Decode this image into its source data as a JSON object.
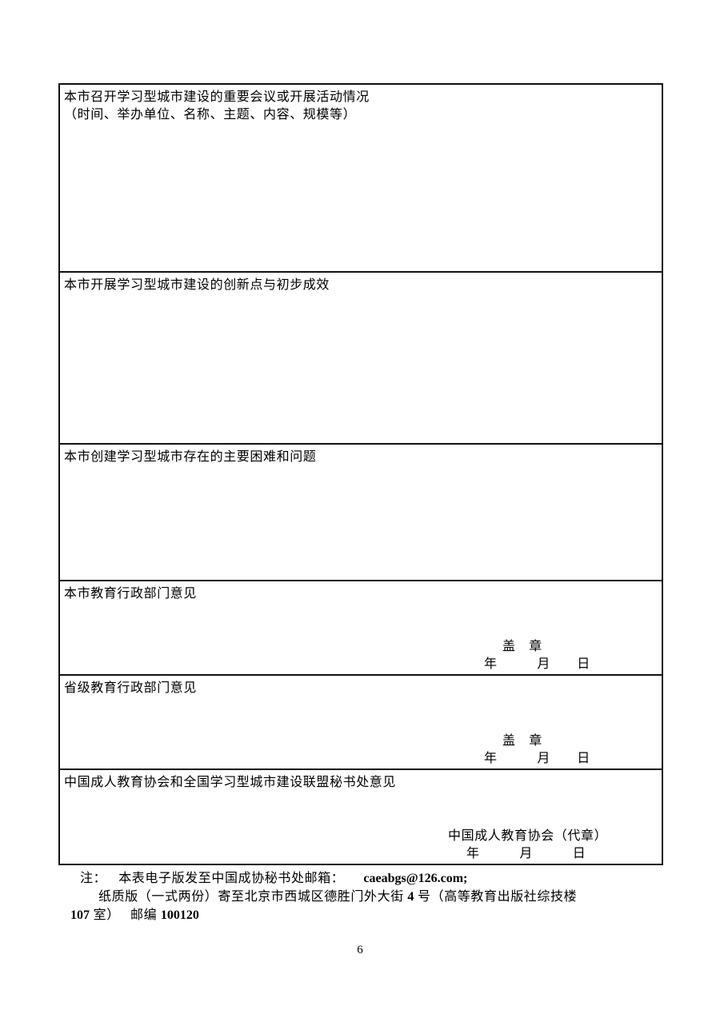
{
  "document": {
    "page_number": "6"
  },
  "table": {
    "rows": [
      {
        "label_line1": "本市召开学习型城市建设的重要会议或开展活动情况",
        "label_line2": "（时间、举办单位、名称、主题、内容、规模等）"
      },
      {
        "label_line1": "本市开展学习型城市建设的创新点与初步成效"
      },
      {
        "label_line1": "本市创建学习型城市存在的主要困难和问题"
      },
      {
        "label_line1": "本市教育行政部门意见",
        "seal_line": "盖　章",
        "date_line": "年　　　月　　日"
      },
      {
        "label_line1": "省级教育行政部门意见",
        "seal_line": "盖　章",
        "date_line": "年　　　月　　日"
      },
      {
        "label_line1": "中国成人教育协会和全国学习型城市建设联盟秘书处意见",
        "seal_line": "中国成人教育协会（代章）",
        "date_line": "年　　　月　　　日"
      }
    ]
  },
  "note": {
    "prefix": "注：",
    "line1_text": "本表电子版发至中国成协秘书处邮箱：",
    "line1_email": "caeabgs@126.com;",
    "line2_part1": "纸质版（一式两份）寄至北京市西城区德胜门外大街 ",
    "line2_num": "4",
    "line2_part2": " 号（高等教育出版社综技楼",
    "line3_num": "107",
    "line3_mid": " 室）　 邮编 ",
    "line3_code": "100120"
  }
}
